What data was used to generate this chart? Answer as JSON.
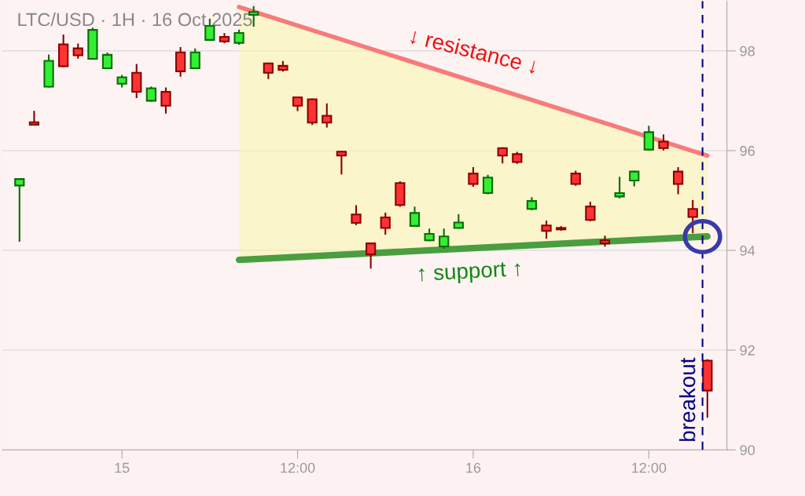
{
  "chart_data": {
    "type": "candlestick",
    "title": "LTC/USD · 1H · 16 Oct 2025",
    "x": [
      "2025-10-14T17:00",
      "2025-10-14T18:00",
      "2025-10-14T19:00",
      "2025-10-14T20:00",
      "2025-10-14T21:00",
      "2025-10-14T22:00",
      "2025-10-14T23:00",
      "2025-10-15T00:00",
      "2025-10-15T01:00",
      "2025-10-15T02:00",
      "2025-10-15T03:00",
      "2025-10-15T04:00",
      "2025-10-15T05:00",
      "2025-10-15T06:00",
      "2025-10-15T07:00",
      "2025-10-15T08:00",
      "2025-10-15T09:00",
      "2025-10-15T10:00",
      "2025-10-15T11:00",
      "2025-10-15T12:00",
      "2025-10-15T13:00",
      "2025-10-15T14:00",
      "2025-10-15T15:00",
      "2025-10-15T16:00",
      "2025-10-15T17:00",
      "2025-10-15T18:00",
      "2025-10-15T19:00",
      "2025-10-15T20:00",
      "2025-10-15T21:00",
      "2025-10-15T22:00",
      "2025-10-15T23:00",
      "2025-10-16T00:00",
      "2025-10-16T01:00",
      "2025-10-16T02:00",
      "2025-10-16T03:00",
      "2025-10-16T04:00",
      "2025-10-16T05:00",
      "2025-10-16T06:00",
      "2025-10-16T07:00",
      "2025-10-16T08:00",
      "2025-10-16T09:00",
      "2025-10-16T10:00",
      "2025-10-16T11:00",
      "2025-10-16T12:00",
      "2025-10-16T13:00",
      "2025-10-16T14:00",
      "2025-10-16T15:00",
      "2025-10-16T16:00"
    ],
    "ohlc": [
      [
        95.3,
        95.43,
        94.19,
        95.43
      ],
      [
        96.57,
        96.78,
        96.52,
        96.52
      ],
      [
        97.28,
        97.91,
        97.28,
        97.8
      ],
      [
        98.13,
        98.31,
        97.69,
        97.69
      ],
      [
        98.05,
        98.13,
        97.86,
        97.91
      ],
      [
        97.84,
        98.45,
        97.84,
        98.42
      ],
      [
        97.65,
        97.95,
        97.65,
        97.92
      ],
      [
        97.34,
        97.5,
        97.28,
        97.47
      ],
      [
        97.56,
        97.72,
        97.07,
        97.18
      ],
      [
        97.0,
        97.27,
        97.0,
        97.25
      ],
      [
        97.18,
        97.25,
        96.76,
        96.9
      ],
      [
        97.97,
        98.06,
        97.5,
        97.59
      ],
      [
        97.65,
        98.03,
        97.65,
        97.97
      ],
      [
        98.22,
        98.63,
        98.22,
        98.5
      ],
      [
        98.28,
        98.34,
        98.17,
        98.19
      ],
      [
        98.16,
        98.41,
        98.14,
        98.36
      ],
      [
        98.72,
        98.88,
        98.5,
        98.78
      ],
      [
        97.75,
        97.75,
        97.45,
        97.56
      ],
      [
        97.7,
        97.78,
        97.6,
        97.62
      ],
      [
        97.07,
        97.07,
        96.81,
        96.9
      ],
      [
        97.03,
        97.03,
        96.53,
        96.56
      ],
      [
        96.7,
        96.93,
        96.48,
        96.56
      ],
      [
        95.98,
        95.98,
        95.54,
        95.9
      ],
      [
        94.72,
        94.89,
        94.52,
        94.55
      ],
      [
        94.14,
        94.14,
        93.65,
        93.92
      ],
      [
        94.66,
        94.74,
        94.33,
        94.45
      ],
      [
        95.35,
        95.37,
        94.89,
        94.91
      ],
      [
        94.49,
        94.86,
        94.49,
        94.75
      ],
      [
        94.2,
        94.42,
        94.2,
        94.33
      ],
      [
        94.08,
        94.42,
        94.05,
        94.28
      ],
      [
        94.45,
        94.71,
        94.45,
        94.56
      ],
      [
        95.54,
        95.65,
        95.29,
        95.33
      ],
      [
        95.15,
        95.5,
        95.14,
        95.46
      ],
      [
        96.05,
        96.05,
        95.76,
        95.9
      ],
      [
        95.93,
        95.96,
        95.75,
        95.77
      ],
      [
        94.83,
        95.05,
        94.82,
        94.99
      ],
      [
        94.5,
        94.58,
        94.25,
        94.39
      ],
      [
        94.45,
        94.47,
        94.41,
        94.42
      ],
      [
        95.54,
        95.58,
        95.31,
        95.33
      ],
      [
        94.88,
        94.96,
        94.6,
        94.61
      ],
      [
        94.2,
        94.28,
        94.09,
        94.14
      ],
      [
        95.08,
        95.46,
        95.06,
        95.15
      ],
      [
        95.4,
        95.58,
        95.3,
        95.58
      ],
      [
        96.02,
        96.48,
        96.02,
        96.37
      ],
      [
        96.18,
        96.31,
        96.02,
        96.05
      ],
      [
        95.58,
        95.65,
        95.14,
        95.33
      ],
      [
        94.83,
        94.99,
        94.36,
        94.67
      ],
      [
        91.79,
        91.8,
        90.66,
        91.19
      ]
    ],
    "colors": [
      "#33ee33",
      "#ff3333",
      "#33ee33",
      "#ff3333",
      "#ff3333",
      "#33ee33",
      "#33ee33",
      "#33ee33",
      "#ff3333",
      "#33ee33",
      "#ff3333",
      "#ff3333",
      "#33ee33",
      "#33ee33",
      "#ff3333",
      "#33ee33",
      "#33ee33",
      "#ff3333",
      "#ff3333",
      "#ff3333",
      "#ff3333",
      "#ff3333",
      "#ff3333",
      "#ff3333",
      "#ff3333",
      "#ff3333",
      "#ff3333",
      "#33ee33",
      "#33ee33",
      "#33ee33",
      "#33ee33",
      "#ff3333",
      "#33ee33",
      "#ff3333",
      "#ff3333",
      "#33ee33",
      "#ff3333",
      "#ff3333",
      "#ff3333",
      "#ff3333",
      "#ff3333",
      "#33ee33",
      "#33ee33",
      "#33ee33",
      "#ff3333",
      "#ff3333",
      "#ff3333",
      "#ff3333"
    ],
    "series": [
      {
        "type": "line",
        "color": "#f77b7b",
        "x": [
          "2025-10-15T08:00",
          "2025-10-16T16:00"
        ],
        "values": [
          98.88,
          95.9
        ]
      },
      {
        "type": "line",
        "color": "#4a9e3f",
        "x": [
          "2025-10-15T08:00",
          "2025-10-16T16:00"
        ],
        "values": [
          93.81,
          94.28
        ]
      }
    ],
    "annotations": [
      "↓ resistance ↓",
      "↑ support ↑"
    ],
    "ref_lines": [
      {
        "axis": "x",
        "value": "2025-10-16T15:40",
        "label": "breakout",
        "color": "#000080",
        "line_style": "dashed"
      }
    ],
    "xlim": [
      "2025-10-14T15:50",
      "2025-10-16T17:20"
    ],
    "xticks": [
      {
        "value": "2025-10-15",
        "label": "15"
      },
      {
        "value": "2025-10-15T12:00",
        "label": "12:00"
      },
      {
        "value": "2025-10-16",
        "label": "16"
      },
      {
        "value": "2025-10-16T12:00",
        "label": "12:00"
      }
    ],
    "ylim": [
      90,
      99
    ],
    "yticks": [
      90,
      92,
      94,
      96,
      98
    ],
    "grid": "y"
  }
}
